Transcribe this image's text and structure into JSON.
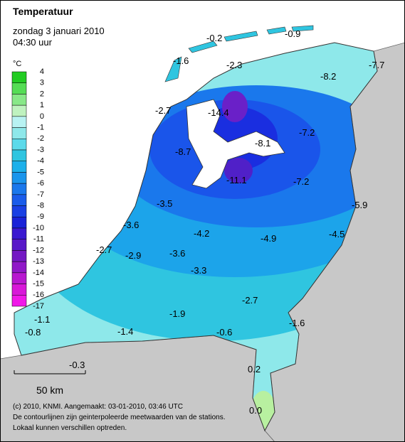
{
  "header": {
    "title": "Temperatuur",
    "date": "zondag 3 januari 2010",
    "time": "04:30 uur"
  },
  "legend": {
    "unit": "°C",
    "labels": [
      4,
      3,
      2,
      1,
      0,
      -1,
      -2,
      -3,
      -4,
      -5,
      -6,
      -7,
      -8,
      -9,
      -10,
      -11,
      -12,
      -13,
      -14,
      -15,
      -16,
      -17
    ]
  },
  "stations": [
    "-0.2",
    "-0.9",
    "-1.6",
    "-2.3",
    "-8.2",
    "-7.7",
    "-2.7",
    "-14.4",
    "-8.7",
    "-8.1",
    "-7.2",
    "-11.1",
    "-7.2",
    "-5.9",
    "-3.5",
    "-3.6",
    "-4.2",
    "-4.9",
    "-4.5",
    "-2.7",
    "-2.9",
    "-3.6",
    "-3.3",
    "-2.7",
    "-1.9",
    "-1.6",
    "-1.1",
    "-0.8",
    "-1.4",
    "-0.6",
    "-0.3",
    "0.2",
    "0.0"
  ],
  "scale": "50 km",
  "credits": [
    "(c) 2010, KNMI. Aangemaakt: 03-01-2010, 03:46 UTC",
    "De contourlijnen zijn geinterpoleerde meetwaarden van de stations.",
    "Lokaal kunnen verschillen optreden."
  ]
}
